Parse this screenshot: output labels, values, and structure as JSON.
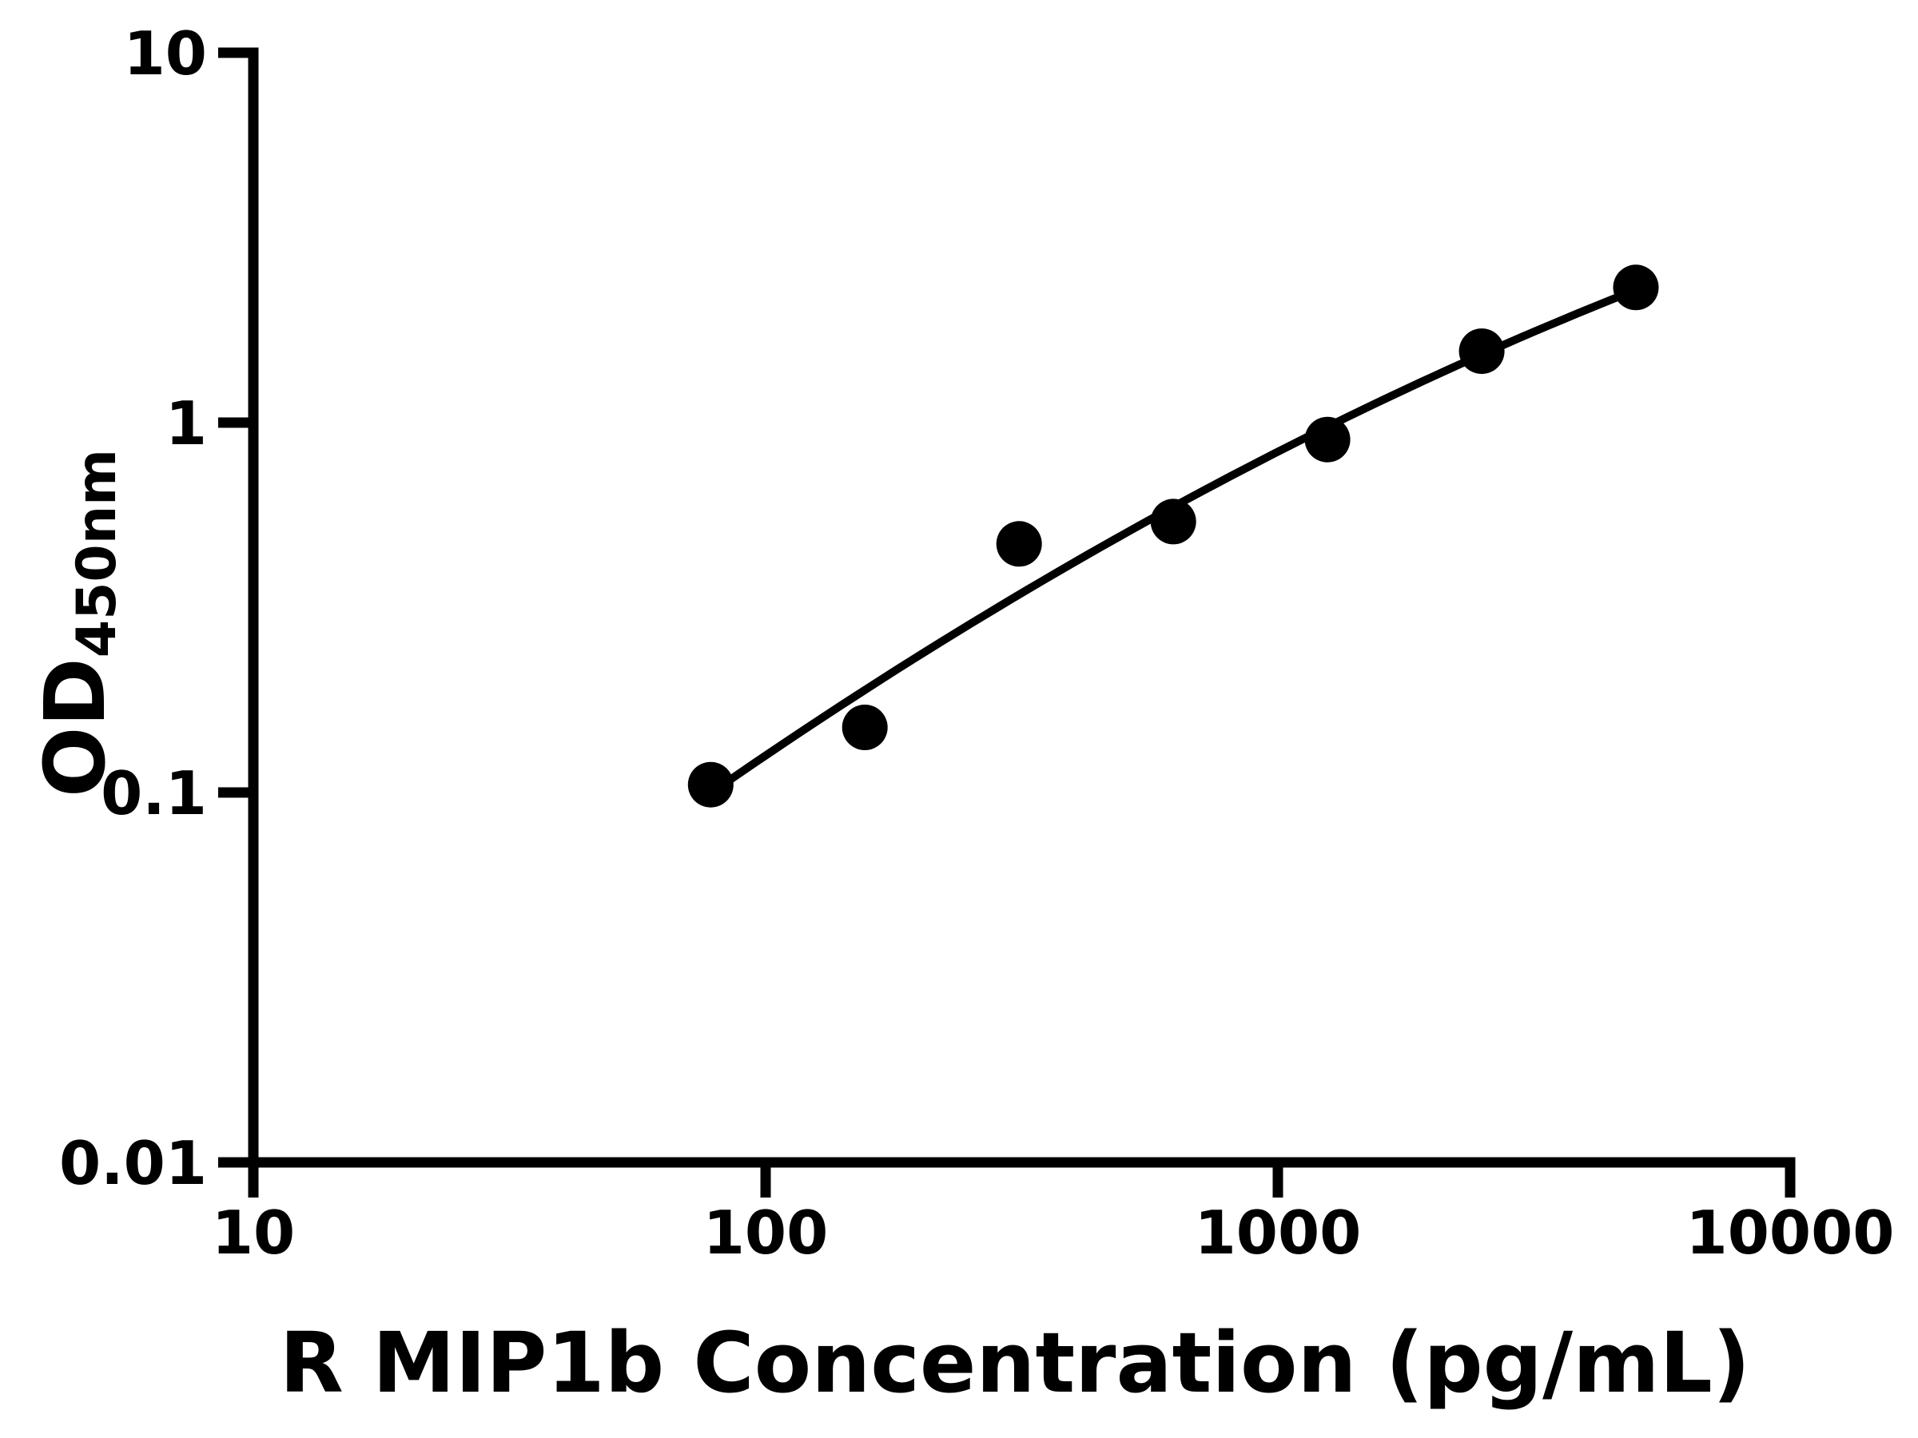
{
  "figure": {
    "background": "#ffffff"
  },
  "chart_data": {
    "type": "scatter",
    "title": "",
    "xlabel": "R MIP1b Concentration (pg/mL)",
    "ylabel_main": "OD",
    "ylabel_subscript": "450nm",
    "x_scale": "log",
    "y_scale": "log",
    "xlim": [
      10,
      10000
    ],
    "ylim": [
      0.01,
      10
    ],
    "grid": false,
    "legend_position": "none",
    "x_ticks": [
      {
        "value": 10,
        "label": "10"
      },
      {
        "value": 100,
        "label": "100"
      },
      {
        "value": 1000,
        "label": "1000"
      },
      {
        "value": 10000,
        "label": "10000"
      }
    ],
    "y_ticks": [
      {
        "value": 0.01,
        "label": "0.01"
      },
      {
        "value": 0.1,
        "label": "0.1"
      },
      {
        "value": 1,
        "label": "1"
      },
      {
        "value": 10,
        "label": "10"
      }
    ],
    "series": [
      {
        "name": "standard-curve-points",
        "points": [
          {
            "x": 78.125,
            "y": 0.105
          },
          {
            "x": 156.25,
            "y": 0.15
          },
          {
            "x": 312.5,
            "y": 0.47
          },
          {
            "x": 625,
            "y": 0.54
          },
          {
            "x": 1250,
            "y": 0.9
          },
          {
            "x": 2500,
            "y": 1.56
          },
          {
            "x": 5000,
            "y": 2.32
          }
        ]
      }
    ],
    "trendline": {
      "form": "quadratic-loglog",
      "u0": 2.7959,
      "a": -0.2277,
      "b": 0.7533,
      "c": -0.1149,
      "x_start": 78.125,
      "x_end": 5000
    },
    "colors": {
      "marker": "#000000",
      "line": "#000000",
      "axis": "#000000",
      "text": "#000000",
      "background": "#ffffff"
    }
  }
}
